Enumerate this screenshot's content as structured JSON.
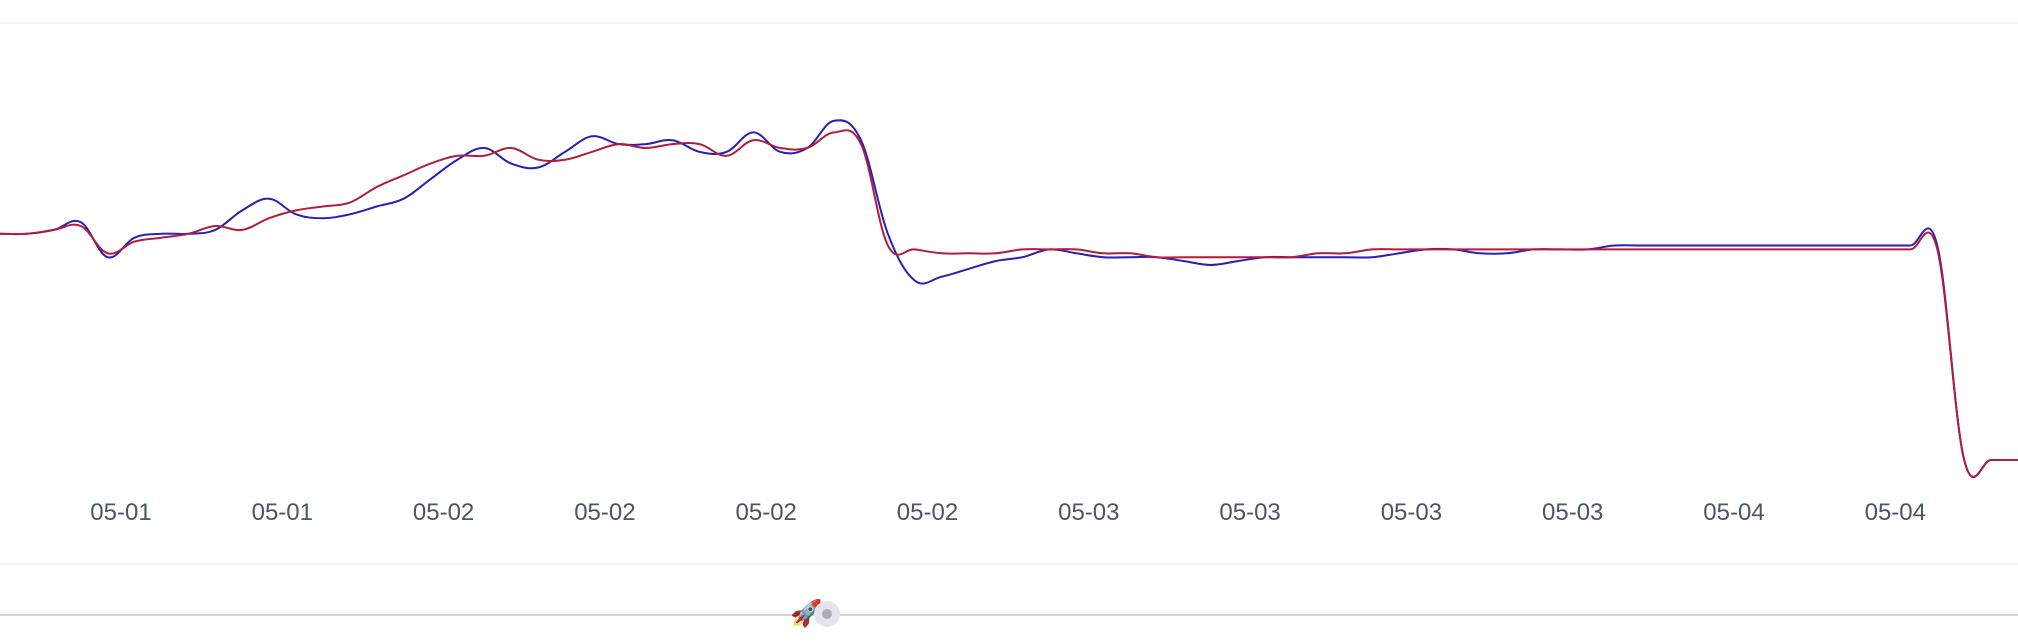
{
  "chart_data": {
    "type": "line",
    "title": "",
    "xlabel": "",
    "ylabel": "",
    "x_tick_labels": [
      "05-01",
      "05-01",
      "05-02",
      "05-02",
      "05-02",
      "05-02",
      "05-03",
      "05-03",
      "05-03",
      "05-03",
      "05-04",
      "05-04"
    ],
    "ylim": [
      0,
      100
    ],
    "grid": false,
    "legend": "none",
    "series": [
      {
        "color": "#2a1fb8",
        "values": [
          58,
          58,
          59,
          61,
          52,
          57,
          58,
          58,
          59,
          64,
          67,
          63,
          62,
          63,
          65,
          67,
          72,
          77,
          80,
          76,
          75,
          79,
          83,
          81,
          81,
          82,
          79,
          79,
          84,
          79,
          80,
          87,
          82,
          58,
          46,
          47,
          49,
          51,
          52,
          54,
          53,
          52,
          52,
          52,
          51,
          50,
          51,
          52,
          52,
          52,
          52,
          52,
          53,
          54,
          54,
          53,
          53,
          54,
          54,
          54,
          55,
          55,
          55,
          55,
          55,
          55,
          55,
          55,
          55,
          55,
          55,
          55,
          55,
          0,
          0,
          0
        ]
      },
      {
        "color": "#b01e3c",
        "values": [
          58,
          58,
          59,
          60,
          53,
          56,
          57,
          58,
          60,
          59,
          62,
          64,
          65,
          66,
          70,
          73,
          76,
          78,
          78,
          80,
          77,
          77,
          79,
          81,
          80,
          81,
          81,
          78,
          82,
          80,
          80,
          84,
          81,
          55,
          54,
          53,
          53,
          53,
          54,
          54,
          54,
          53,
          53,
          52,
          52,
          52,
          52,
          52,
          52,
          53,
          53,
          54,
          54,
          54,
          54,
          54,
          54,
          54,
          54,
          54,
          54,
          54,
          54,
          54,
          54,
          54,
          54,
          54,
          54,
          54,
          54,
          54,
          54,
          0,
          0,
          0
        ]
      }
    ]
  },
  "slider": {
    "marker_icon": "🚀",
    "position_fraction": 0.41
  }
}
